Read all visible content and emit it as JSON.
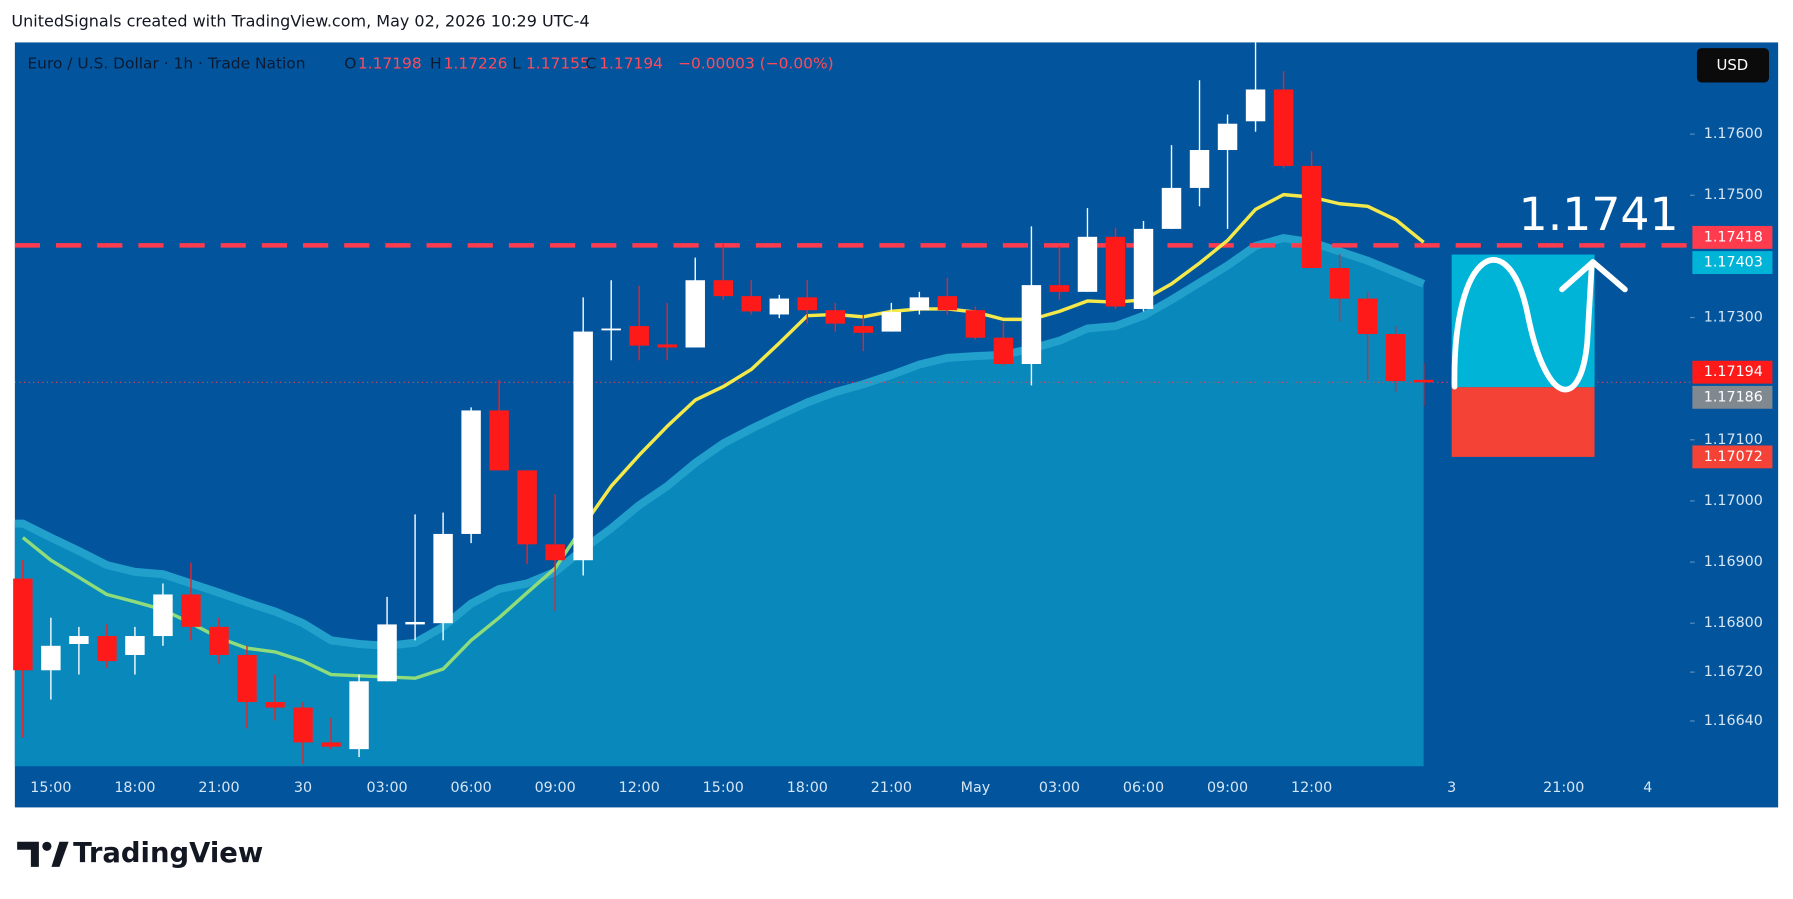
{
  "header": {
    "credit": "UnitedSignals created with TradingView.com, May 02, 2026 10:29 UTC-4"
  },
  "footer": {
    "brand": "TradingView"
  },
  "chart_data": {
    "type": "candlestick",
    "symbol": "Euro / U.S. Dollar · 1h · Trade Nation",
    "ohlc_labels": [
      "O",
      "H",
      "L",
      "C"
    ],
    "change": "−0.00003 (−0.00%)",
    "currency": "USD",
    "annotation": "1.1741",
    "up_color": "#ffffff",
    "down_color": "#ff1a1a",
    "categories": [
      null,
      "15:00",
      null,
      null,
      "18:00",
      null,
      null,
      "21:00",
      null,
      null,
      "30",
      null,
      null,
      "03:00",
      null,
      null,
      "06:00",
      null,
      null,
      "09:00",
      null,
      null,
      "12:00",
      null,
      null,
      "15:00",
      null,
      null,
      "18:00",
      null,
      null,
      "21:00",
      null,
      null,
      "May",
      null,
      null,
      "03:00",
      null,
      null,
      "06:00",
      null,
      null,
      "09:00",
      null,
      null,
      "12:00",
      null,
      null,
      null,
      null,
      "3",
      null,
      null,
      null,
      "21:00",
      null,
      null,
      "4",
      null
    ],
    "open": [
      1.16873,
      1.16723,
      1.16766,
      1.16779,
      1.16748,
      1.16779,
      1.16847,
      1.16794,
      1.16748,
      1.16671,
      1.16662,
      1.16605,
      1.16594,
      1.16705,
      1.16798,
      1.168,
      1.16946,
      1.17148,
      1.1705,
      1.16929,
      1.16903,
      1.17279,
      1.17286,
      1.17256,
      1.17251,
      1.17361,
      1.17335,
      1.17305,
      1.17333,
      1.17312,
      1.17286,
      1.17277,
      1.17312,
      1.17335,
      1.17312,
      1.17267,
      1.17224,
      1.17353,
      1.17342,
      1.17432,
      1.17314,
      1.17445,
      1.17512,
      1.17574,
      1.17621,
      1.17673,
      1.17548,
      1.17381,
      1.17331,
      1.17273,
      1.17198,
      null,
      null,
      null,
      null,
      null,
      null,
      null,
      null,
      null
    ],
    "high": [
      1.16903,
      1.16809,
      1.16794,
      1.16798,
      1.16794,
      1.16865,
      1.16899,
      1.16809,
      1.16763,
      1.16716,
      1.16671,
      1.16645,
      1.16716,
      1.16843,
      1.16978,
      1.16981,
      1.17153,
      1.17198,
      1.1705,
      1.17011,
      1.17333,
      1.17361,
      1.17352,
      1.17324,
      1.17398,
      1.17421,
      1.17361,
      1.17337,
      1.17361,
      1.17324,
      1.17305,
      1.17324,
      1.17342,
      1.17365,
      1.17318,
      1.17292,
      1.17449,
      1.17417,
      1.17479,
      1.17447,
      1.17458,
      1.17582,
      1.17688,
      1.17632,
      1.1775,
      1.17703,
      1.17572,
      1.17404,
      1.17342,
      1.17286,
      1.17226,
      null,
      null,
      null,
      null,
      null,
      null,
      null,
      null,
      null
    ],
    "low": [
      1.16613,
      1.16675,
      1.16716,
      1.16727,
      1.16716,
      1.16763,
      1.16772,
      1.16734,
      1.16628,
      1.16641,
      1.1657,
      1.16594,
      1.16581,
      1.16705,
      1.16772,
      1.16772,
      1.16931,
      1.1705,
      1.16897,
      1.1682,
      1.16878,
      1.1723,
      1.1723,
      1.1723,
      1.17251,
      1.17329,
      1.17305,
      1.17299,
      1.1729,
      1.17277,
      1.17245,
      1.17277,
      1.17305,
      1.17305,
      1.17264,
      1.17221,
      1.17189,
      1.17329,
      1.17342,
      1.17314,
      1.1731,
      1.17445,
      1.17482,
      1.17445,
      1.17604,
      1.17544,
      1.1738,
      1.17294,
      1.17198,
      1.17178,
      1.17155,
      null,
      null,
      null,
      null,
      null,
      null,
      null,
      null,
      null
    ],
    "close": [
      1.16723,
      1.16763,
      1.16779,
      1.16738,
      1.16779,
      1.16847,
      1.16794,
      1.16748,
      1.16671,
      1.16662,
      1.16605,
      1.16598,
      1.16705,
      1.16798,
      1.16802,
      1.16946,
      1.17148,
      1.1705,
      1.16929,
      1.16903,
      1.17277,
      1.17282,
      1.17254,
      1.17251,
      1.17361,
      1.17335,
      1.1731,
      1.17331,
      1.17312,
      1.1729,
      1.17275,
      1.17309,
      1.17333,
      1.17312,
      1.17267,
      1.17224,
      1.17353,
      1.17342,
      1.17432,
      1.17318,
      1.17445,
      1.17512,
      1.17574,
      1.17617,
      1.17673,
      1.17548,
      1.17381,
      1.17331,
      1.17273,
      1.17196,
      1.17194,
      null,
      null,
      null,
      null,
      null,
      null,
      null,
      null,
      null
    ],
    "area": {
      "color": "#0888bb",
      "edge_color": "#22a0cc",
      "values": [
        1.16963,
        1.1694,
        1.16918,
        1.16895,
        1.16884,
        1.1688,
        1.16865,
        1.1685,
        1.16834,
        1.16819,
        1.168,
        1.16772,
        1.16766,
        1.16763,
        1.16768,
        1.16794,
        1.16832,
        1.16856,
        1.16865,
        1.16884,
        1.16921,
        1.16955,
        1.16993,
        1.17024,
        1.17062,
        1.17094,
        1.17118,
        1.1714,
        1.17161,
        1.17178,
        1.17191,
        1.17206,
        1.17223,
        1.17234,
        1.17237,
        1.17239,
        1.17249,
        1.17262,
        1.17282,
        1.17286,
        1.17303,
        1.17329,
        1.17357,
        1.17385,
        1.17417,
        1.1743,
        1.17423,
        1.17408,
        1.17393,
        1.17374,
        1.17355,
        null,
        null,
        null,
        null,
        null,
        null,
        null,
        null,
        null
      ]
    },
    "lines": [
      {
        "color": "#8fdc7a",
        "values": [
          1.1694,
          1.16903,
          1.16875,
          1.16847,
          1.16835,
          1.16822,
          1.168,
          1.16776,
          1.16759,
          1.16753,
          1.16738,
          1.16716,
          1.16714,
          1.16712,
          1.1671,
          1.16725,
          1.16772,
          1.16809,
          1.1685,
          1.1689,
          1.16959,
          null,
          null,
          null,
          null,
          null,
          null,
          null,
          null,
          null,
          null,
          null,
          null,
          null,
          null,
          null,
          null,
          null,
          null,
          null,
          null,
          null,
          null,
          null,
          null,
          null,
          null,
          null,
          null,
          null,
          null,
          null,
          null,
          null,
          null,
          null,
          null,
          null,
          null,
          null
        ]
      },
      {
        "color": "#f5e94a",
        "values": [
          null,
          null,
          null,
          null,
          null,
          null,
          null,
          null,
          null,
          null,
          null,
          null,
          null,
          null,
          null,
          null,
          null,
          null,
          null,
          null,
          1.16959,
          1.17024,
          1.17075,
          1.17122,
          1.17165,
          1.17187,
          1.17215,
          1.17258,
          1.17303,
          1.17305,
          1.17301,
          1.1731,
          1.17314,
          1.17314,
          1.17309,
          1.17297,
          1.17297,
          1.1731,
          1.17327,
          1.17325,
          1.17329,
          1.17355,
          1.17389,
          1.17426,
          1.17477,
          1.17501,
          1.17497,
          1.17486,
          1.17482,
          1.1746,
          1.17423,
          null,
          null,
          null,
          null,
          null,
          null,
          null,
          null,
          null
        ]
      }
    ],
    "level": {
      "value": 1.17418,
      "color": "#ff3b4e"
    },
    "position": {
      "entry": 1.17186,
      "target": 1.17403,
      "stop": 1.17072,
      "start": 51,
      "end": 56.1,
      "target_color": "#00b4d8",
      "stop_color": "#f44336"
    },
    "ylim": [
      1.16566,
      1.1775
    ],
    "yticks": [
      {
        "value": 1.1664,
        "label": "1.16640"
      },
      {
        "value": 1.1672,
        "label": "1.16720"
      },
      {
        "value": 1.168,
        "label": "1.16800"
      },
      {
        "value": 1.169,
        "label": "1.16900"
      },
      {
        "value": 1.17,
        "label": "1.17000"
      },
      {
        "value": 1.171,
        "label": "1.17100"
      },
      {
        "value": 1.173,
        "label": "1.17300"
      },
      {
        "value": 1.175,
        "label": "1.17500"
      },
      {
        "value": 1.176,
        "label": "1.17600"
      }
    ]
  }
}
